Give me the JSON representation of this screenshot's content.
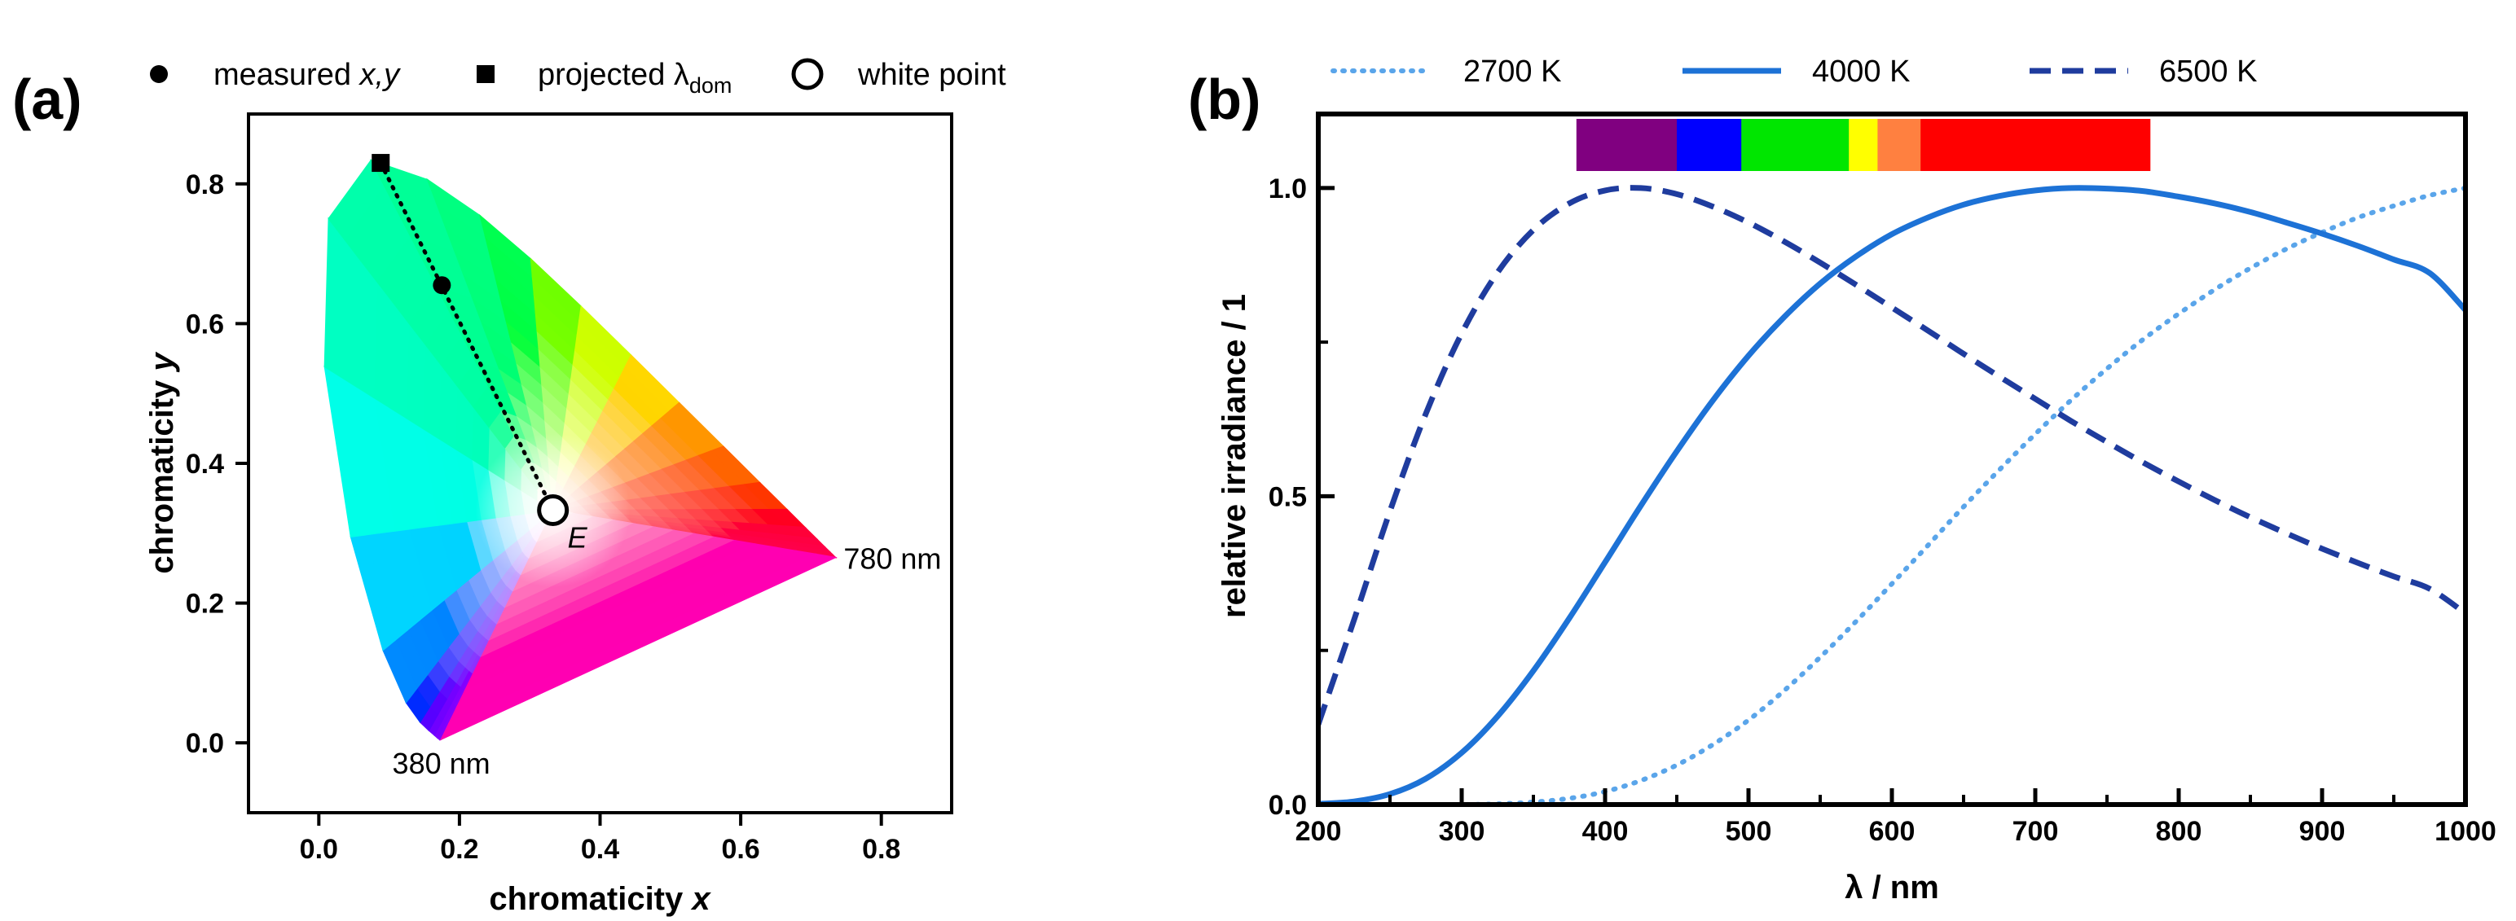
{
  "chart_data": [
    {
      "panel": "(a)",
      "type": "scatter",
      "title": "",
      "xlabel": "chromaticity x",
      "xlabel_main": "chromaticity ",
      "xlabel_var": "x",
      "ylabel": "chromaticity y",
      "ylabel_main": "chromaticity ",
      "ylabel_var": "y",
      "xlim": [
        -0.1,
        0.9
      ],
      "ylim": [
        -0.1,
        0.9
      ],
      "xticks": [
        0.0,
        0.2,
        0.4,
        0.6,
        0.8
      ],
      "xtick_labels": [
        "0.0",
        "0.2",
        "0.4",
        "0.6",
        "0.8"
      ],
      "yticks": [
        0.0,
        0.2,
        0.4,
        0.6,
        0.8
      ],
      "ytick_labels": [
        "0.0",
        "0.2",
        "0.4",
        "0.6",
        "0.8"
      ],
      "grid": false,
      "legend": {
        "placement": "top",
        "entries": [
          {
            "marker": "circle",
            "label": "measured ",
            "label_var": "x,y"
          },
          {
            "marker": "square",
            "label": "projected λ",
            "label_sub": "dom"
          },
          {
            "marker": "open-circle",
            "label": "white point"
          }
        ]
      },
      "spectral_locus": {
        "x": [
          0.1741,
          0.1738,
          0.1733,
          0.1726,
          0.1714,
          0.1689,
          0.1644,
          0.1566,
          0.144,
          0.1241,
          0.0913,
          0.0454,
          0.0082,
          0.0139,
          0.0743,
          0.1547,
          0.2296,
          0.3016,
          0.3731,
          0.4441,
          0.5125,
          0.5752,
          0.627,
          0.6658,
          0.6915,
          0.7079,
          0.719,
          0.726,
          0.73,
          0.732,
          0.7334,
          0.7344,
          0.7347
        ],
        "y": [
          0.005,
          0.005,
          0.0048,
          0.0048,
          0.0051,
          0.0069,
          0.0109,
          0.0177,
          0.0297,
          0.0578,
          0.1327,
          0.295,
          0.5384,
          0.7502,
          0.8338,
          0.8059,
          0.7543,
          0.6923,
          0.6245,
          0.5547,
          0.4866,
          0.4242,
          0.3725,
          0.334,
          0.3083,
          0.292,
          0.2809,
          0.274,
          0.27,
          0.268,
          0.2666,
          0.2656,
          0.2653
        ],
        "start_label": "380 nm",
        "end_label": "780 nm"
      },
      "points": {
        "measured": {
          "x": 0.175,
          "y": 0.655
        },
        "projected_dom": {
          "x": 0.088,
          "y": 0.83
        },
        "white_point": {
          "x": 0.333,
          "y": 0.333,
          "label": "E"
        }
      },
      "dotted_line": "projected_dom to white_point"
    },
    {
      "panel": "(b)",
      "type": "line",
      "title": "",
      "xlabel": "λ / nm",
      "ylabel": "relative irradiance / 1",
      "xlim": [
        200,
        1000
      ],
      "ylim": [
        0,
        1.12
      ],
      "xticks": [
        200,
        300,
        400,
        500,
        600,
        700,
        800,
        900,
        1000
      ],
      "xtick_labels": [
        "200",
        "300",
        "400",
        "500",
        "600",
        "700",
        "800",
        "900",
        "1000"
      ],
      "yticks": [
        0.0,
        0.5,
        1.0
      ],
      "ytick_labels": [
        "0.0",
        "0.5",
        "1.0"
      ],
      "grid": false,
      "legend_placement": "top",
      "x": [
        200,
        225,
        250,
        275,
        300,
        325,
        350,
        375,
        400,
        425,
        450,
        475,
        500,
        525,
        550,
        575,
        600,
        625,
        650,
        675,
        700,
        725,
        750,
        775,
        800,
        825,
        850,
        875,
        900,
        925,
        950,
        975,
        1000
      ],
      "series": [
        {
          "name": "2700 K",
          "style": "dotted",
          "color": "#5aa5ea",
          "values": [
            0.0,
            0.0,
            0.0,
            0.0,
            0.0,
            0.001,
            0.004,
            0.01,
            0.021,
            0.039,
            0.064,
            0.097,
            0.137,
            0.185,
            0.239,
            0.297,
            0.358,
            0.42,
            0.483,
            0.543,
            0.601,
            0.656,
            0.707,
            0.754,
            0.796,
            0.835,
            0.87,
            0.901,
            0.928,
            0.952,
            0.971,
            0.988,
            1.0
          ]
        },
        {
          "name": "4000 K",
          "style": "solid",
          "color": "#1d72d6",
          "values": [
            0.001,
            0.005,
            0.017,
            0.042,
            0.084,
            0.143,
            0.217,
            0.302,
            0.393,
            0.485,
            0.573,
            0.655,
            0.728,
            0.791,
            0.845,
            0.889,
            0.925,
            0.952,
            0.973,
            0.987,
            0.996,
            1.0,
            0.999,
            0.995,
            0.986,
            0.975,
            0.961,
            0.944,
            0.926,
            0.906,
            0.884,
            0.862,
            0.802
          ]
        },
        {
          "name": "6500 K",
          "style": "dashed",
          "color": "#1f3c9e",
          "values": [
            0.13,
            0.3,
            0.476,
            0.634,
            0.764,
            0.863,
            0.932,
            0.975,
            0.996,
            1.0,
            0.99,
            0.97,
            0.944,
            0.913,
            0.879,
            0.843,
            0.806,
            0.769,
            0.731,
            0.694,
            0.658,
            0.622,
            0.588,
            0.555,
            0.524,
            0.494,
            0.466,
            0.44,
            0.415,
            0.392,
            0.37,
            0.35,
            0.31
          ]
        }
      ],
      "spectrum_bar": [
        {
          "start": 380,
          "end": 450,
          "color": "#800080"
        },
        {
          "start": 450,
          "end": 495,
          "color": "#0000ff"
        },
        {
          "start": 495,
          "end": 570,
          "color": "#00e600"
        },
        {
          "start": 570,
          "end": 590,
          "color": "#ffff00"
        },
        {
          "start": 590,
          "end": 620,
          "color": "#ff8040"
        },
        {
          "start": 620,
          "end": 780,
          "color": "#ff0000"
        }
      ]
    }
  ]
}
